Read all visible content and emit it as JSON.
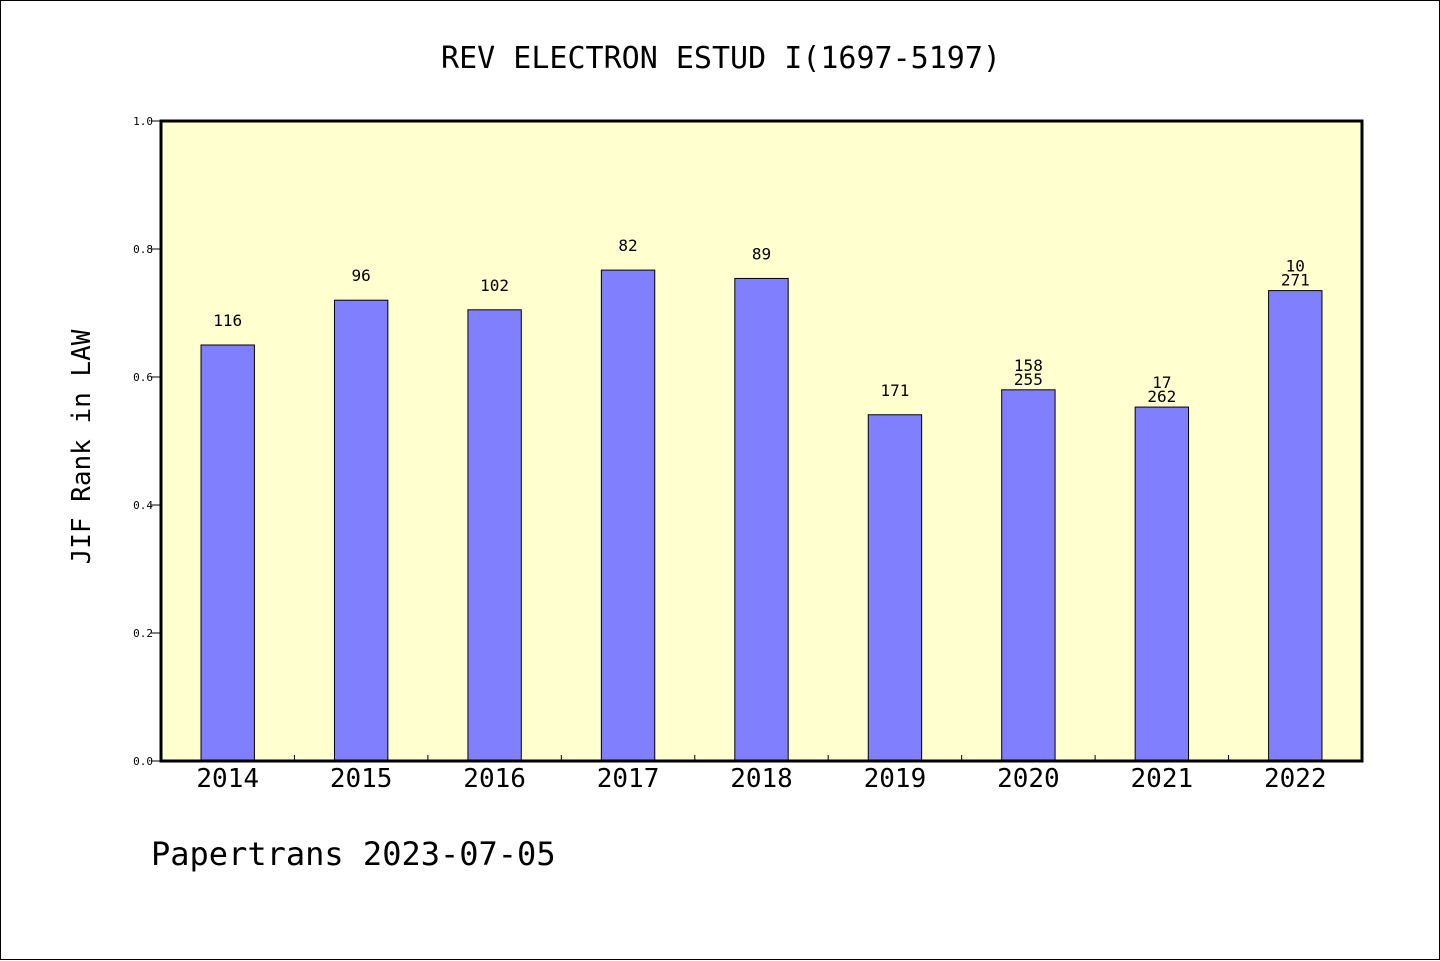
{
  "chart_data": {
    "type": "bar",
    "title": "REV ELECTRON ESTUD I(1697-5197)",
    "xlabel": "",
    "ylabel": "JIF Rank in LAW",
    "ylim": [
      0,
      1.0
    ],
    "yticks": [
      "0.0",
      "0.2",
      "0.4",
      "0.6",
      "0.8",
      "1.0"
    ],
    "grid": false,
    "categories": [
      "2014",
      "2015",
      "2016",
      "2017",
      "2018",
      "2019",
      "2020",
      "2021",
      "2022"
    ],
    "values": [
      0.65,
      0.72,
      0.705,
      0.767,
      0.754,
      0.541,
      0.58,
      0.553,
      0.735
    ],
    "bar_labels": [
      [
        "116"
      ],
      [
        "96"
      ],
      [
        "102"
      ],
      [
        "82"
      ],
      [
        "89"
      ],
      [
        "171"
      ],
      [
        "158",
        "255"
      ],
      [
        "17",
        "262"
      ],
      [
        "10",
        "271"
      ]
    ],
    "colors": {
      "plot_bg": "#ffffd0",
      "bar": "#8080ff",
      "axis": "#000000"
    }
  },
  "footer": {
    "text": "Papertrans 2023-07-05"
  }
}
